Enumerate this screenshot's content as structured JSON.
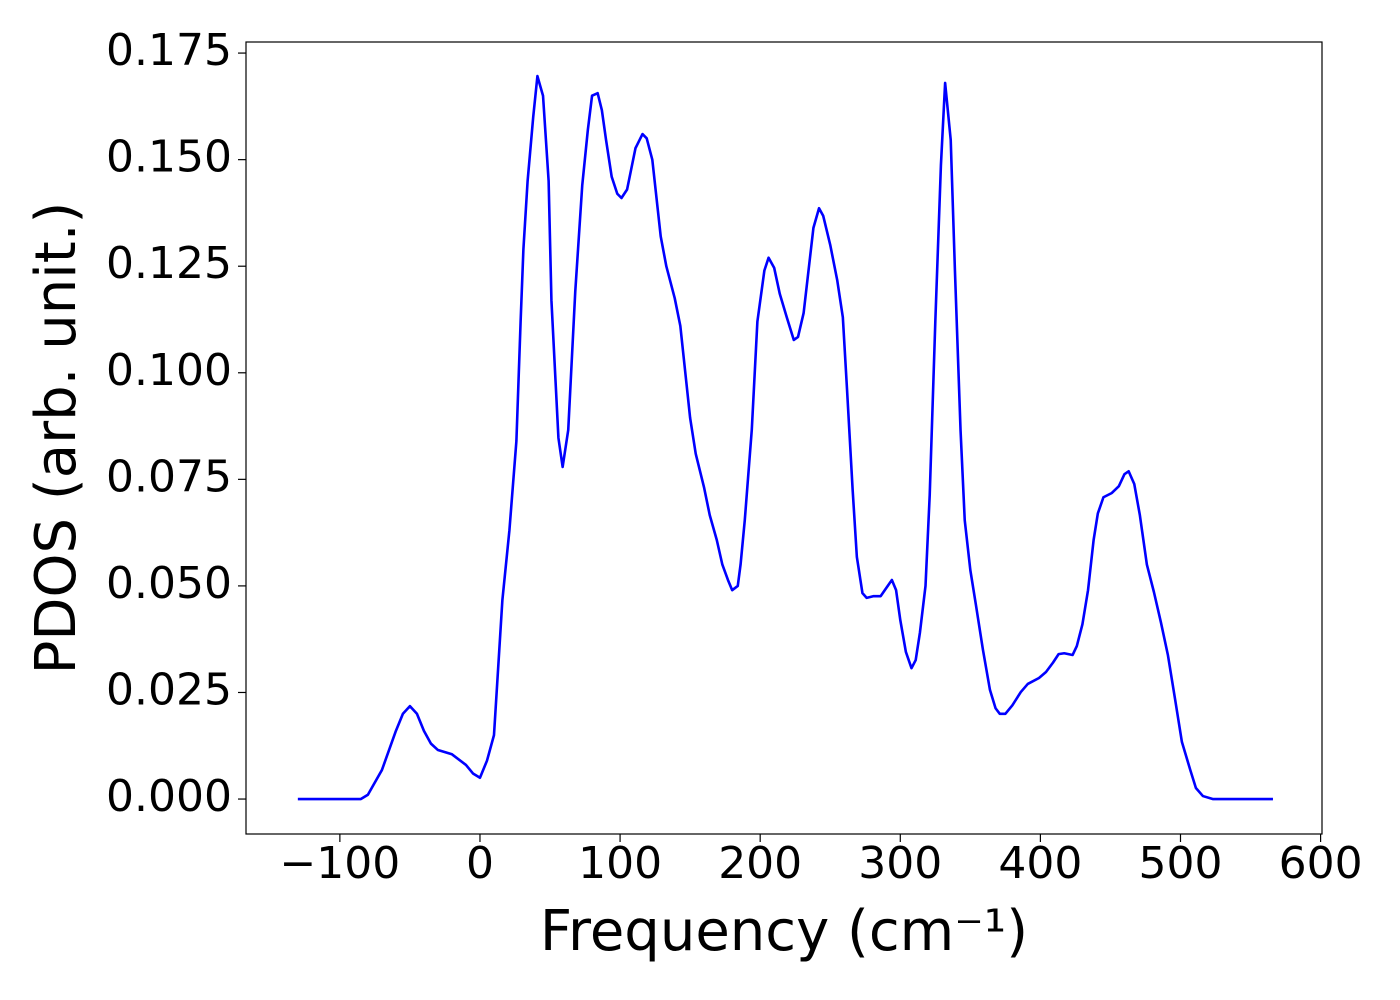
{
  "chart_data": {
    "type": "line",
    "x_label": "Frequency (cm⁻¹)",
    "y_label": "PDOS (arb. unit.)",
    "x": [
      -130,
      -85,
      -80,
      -70,
      -60,
      -55,
      -50,
      -45,
      -40,
      -35,
      -30,
      -20,
      -10,
      -5,
      0,
      5,
      10,
      16,
      21,
      26,
      29,
      31,
      34,
      38,
      41,
      45,
      49,
      51,
      56,
      59,
      63,
      68,
      73,
      77,
      80,
      84,
      87,
      90,
      94,
      98,
      101,
      105,
      111,
      116,
      119,
      123,
      129,
      133,
      139,
      143,
      150,
      154,
      160,
      164,
      169,
      173,
      177,
      180,
      184,
      186,
      189,
      194,
      198,
      203,
      206,
      210,
      214,
      219,
      224,
      227,
      231,
      238,
      242,
      245,
      250,
      255,
      259,
      262,
      266,
      269,
      273,
      276,
      281,
      286,
      290,
      294,
      297,
      300,
      304,
      308,
      311,
      314,
      318,
      321,
      325,
      329,
      332,
      336,
      339,
      343,
      346,
      350,
      354,
      359,
      364,
      368,
      371,
      375,
      380,
      386,
      391,
      399,
      404,
      409,
      413,
      417,
      423,
      426,
      430,
      434,
      438,
      441,
      445,
      451,
      456,
      460,
      463,
      467,
      471,
      476,
      481,
      486,
      491,
      496,
      501,
      507,
      511,
      516,
      523,
      566
    ],
    "series": [
      {
        "name": "PDOS",
        "color": "#0000ff",
        "values": [
          0,
          0,
          0.001,
          0.0068,
          0.016,
          0.02,
          0.0218,
          0.02,
          0.016,
          0.013,
          0.0115,
          0.0105,
          0.008,
          0.006,
          0.005,
          0.009,
          0.015,
          0.0467,
          0.063,
          0.084,
          0.112,
          0.129,
          0.145,
          0.16,
          0.1696,
          0.165,
          0.145,
          0.117,
          0.0847,
          0.0779,
          0.0866,
          0.119,
          0.144,
          0.157,
          0.165,
          0.1656,
          0.1616,
          0.1546,
          0.146,
          0.142,
          0.141,
          0.143,
          0.1527,
          0.156,
          0.155,
          0.15,
          0.132,
          0.125,
          0.1175,
          0.111,
          0.0894,
          0.081,
          0.073,
          0.0666,
          0.0608,
          0.055,
          0.0514,
          0.049,
          0.05,
          0.055,
          0.0654,
          0.0866,
          0.112,
          0.124,
          0.127,
          0.1246,
          0.1185,
          0.113,
          0.1077,
          0.1084,
          0.114,
          0.134,
          0.1386,
          0.1368,
          0.13,
          0.1217,
          0.113,
          0.096,
          0.0725,
          0.0568,
          0.0483,
          0.0472,
          0.0476,
          0.0476,
          0.0495,
          0.0514,
          0.049,
          0.042,
          0.0345,
          0.0307,
          0.0326,
          0.039,
          0.05,
          0.0713,
          0.112,
          0.1487,
          0.168,
          0.1546,
          0.124,
          0.0866,
          0.0654,
          0.0537,
          0.0455,
          0.035,
          0.0256,
          0.0213,
          0.02,
          0.02,
          0.022,
          0.0251,
          0.027,
          0.0284,
          0.0298,
          0.032,
          0.034,
          0.0342,
          0.0338,
          0.0359,
          0.041,
          0.049,
          0.0608,
          0.067,
          0.0708,
          0.0718,
          0.0734,
          0.0762,
          0.0769,
          0.0739,
          0.0666,
          0.055,
          0.0486,
          0.0415,
          0.0338,
          0.0237,
          0.0134,
          0.0068,
          0.0026,
          0.0007,
          0,
          0
        ]
      }
    ],
    "xlim": [
      -167,
      601
    ],
    "ylim": [
      -0.0082,
      0.1776
    ],
    "xticks": [
      {
        "value": -100,
        "label": "−100"
      },
      0,
      100,
      200,
      300,
      400,
      500,
      600
    ],
    "yticks": [
      {
        "value": 0,
        "label": "0.000"
      },
      {
        "value": 0.025,
        "label": "0.025"
      },
      {
        "value": 0.05,
        "label": "0.050"
      },
      {
        "value": 0.075,
        "label": "0.075"
      },
      {
        "value": 0.1,
        "label": "0.100"
      },
      {
        "value": 0.125,
        "label": "0.125"
      },
      {
        "value": 0.15,
        "label": "0.150"
      },
      {
        "value": 0.175,
        "label": "0.175"
      }
    ],
    "grid": false
  }
}
